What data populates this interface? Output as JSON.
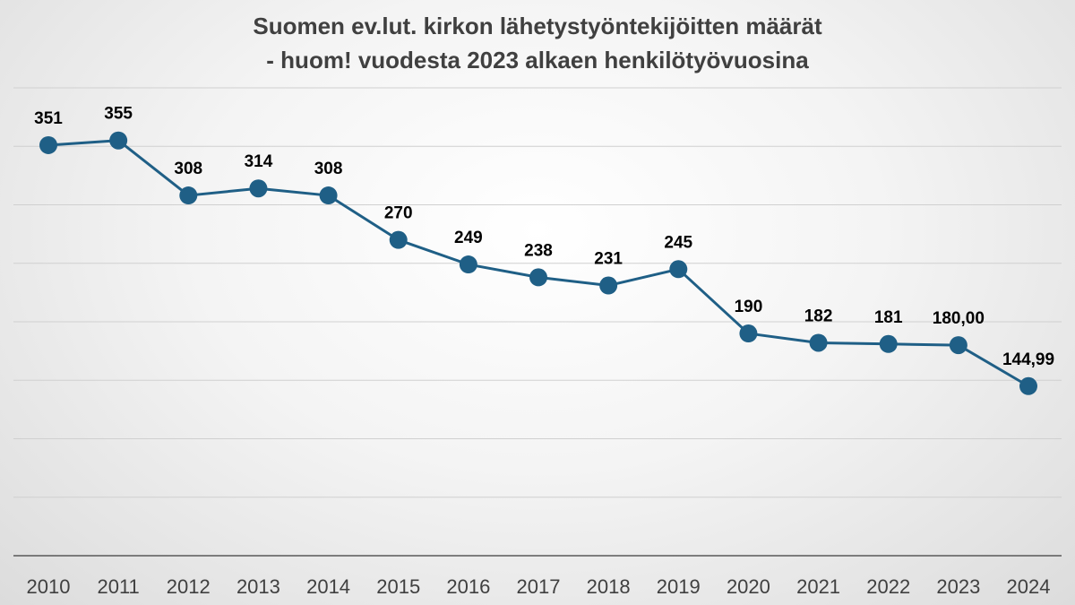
{
  "chart_data": {
    "type": "line",
    "title": "Suomen ev.lut. kirkon lähetystyöntekijöitten määrät",
    "subtitle": "- huom! vuodesta 2023 alkaen henkilötyövuosina",
    "xlabel": "",
    "ylabel": "",
    "ylim": [
      0,
      400
    ],
    "grid": true,
    "legend": "none",
    "colors": {
      "line": "#1f5f86",
      "marker": "#1f5f86",
      "grid": "#d0d0d0",
      "axis": "#595959",
      "label": "#000000",
      "tick": "#404040"
    },
    "x": [
      "2010",
      "2011",
      "2012",
      "2013",
      "2014",
      "2015",
      "2016",
      "2017",
      "2018",
      "2019",
      "2020",
      "2021",
      "2022",
      "2023",
      "2024"
    ],
    "series": [
      {
        "values": [
          351,
          355,
          308,
          314,
          308,
          270,
          249,
          238,
          231,
          245,
          190,
          182,
          181,
          180.0,
          144.99
        ],
        "labels": [
          "351",
          "355",
          "308",
          "314",
          "308",
          "270",
          "249",
          "238",
          "231",
          "245",
          "190",
          "182",
          "181",
          "180,00",
          "144,99"
        ]
      }
    ]
  }
}
